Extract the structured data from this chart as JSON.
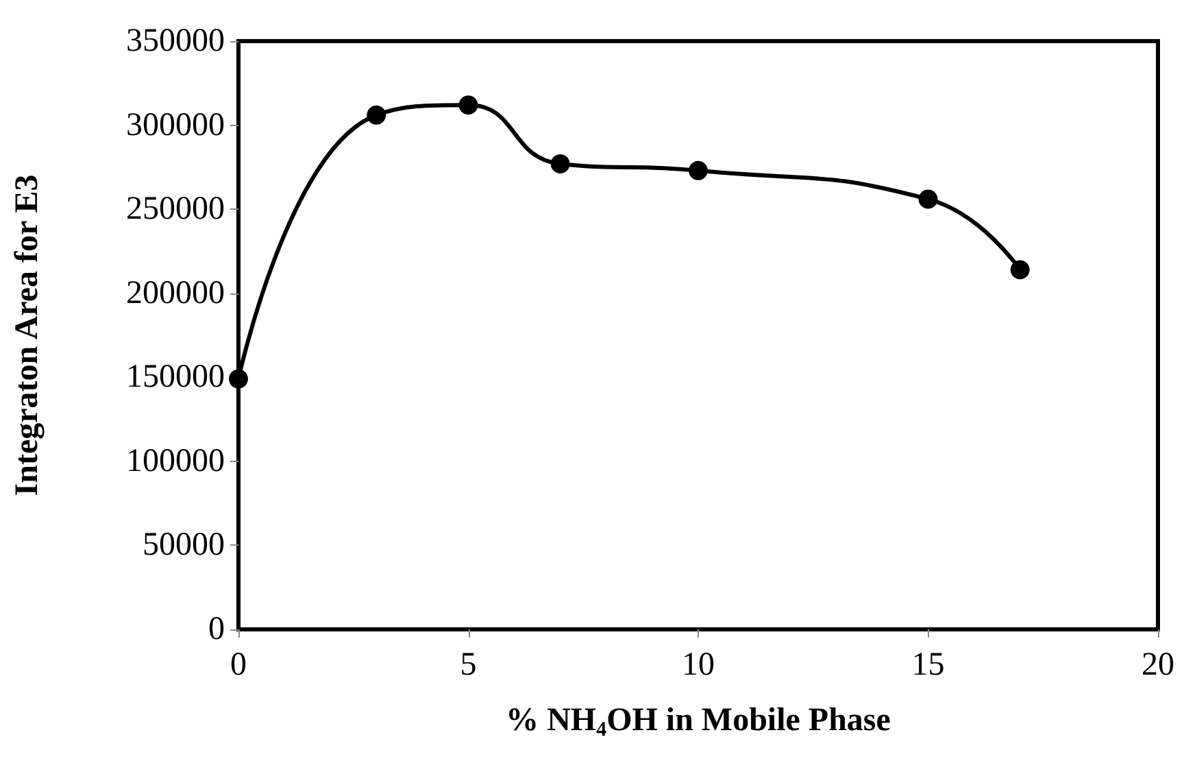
{
  "chart_data": {
    "type": "line",
    "xlabel": "% NH$_{4}$OH in Mobile Phase",
    "ylabel": "Integraton Area for E3",
    "x": [
      0,
      3,
      5,
      7,
      10,
      15,
      17
    ],
    "series": [
      {
        "color": "#000000",
        "values": [
          149000,
          306000,
          312000,
          277000,
          273000,
          256000,
          214000
        ]
      }
    ],
    "xlim": [
      0,
      20
    ],
    "xticks": [
      0,
      5,
      10,
      15,
      20
    ],
    "ylim": [
      0,
      350000
    ],
    "yticks": [
      0,
      50000,
      100000,
      150000,
      200000,
      250000,
      300000,
      350000
    ],
    "grid": false,
    "marker": "circle",
    "line_style": "solid"
  }
}
